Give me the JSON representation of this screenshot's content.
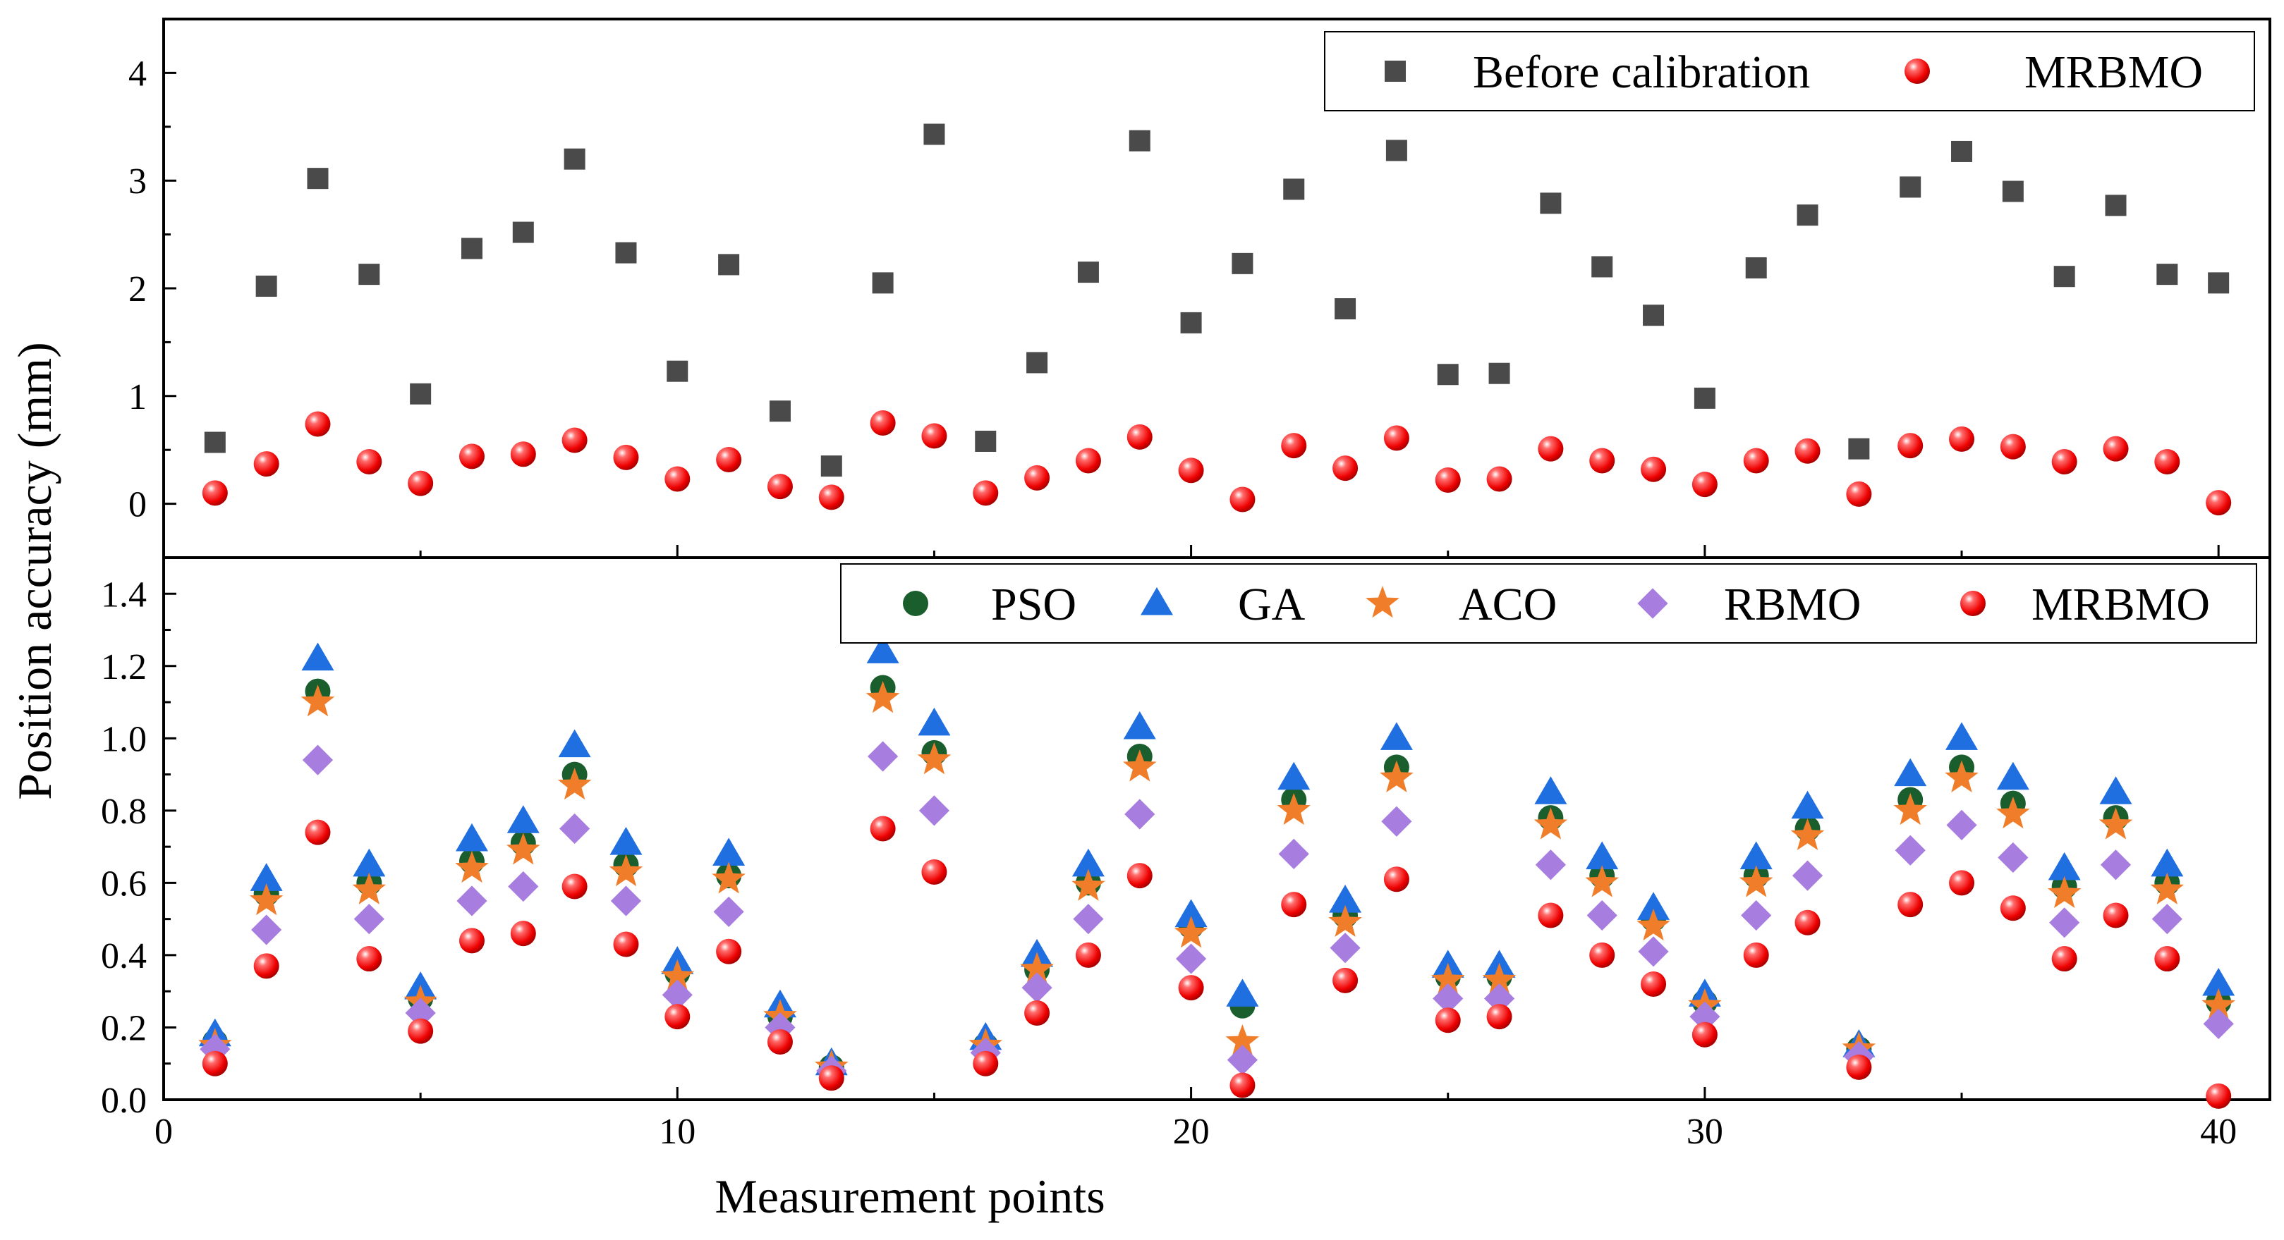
{
  "chart_data": [
    {
      "type": "scatter",
      "panel": "top",
      "title": "",
      "xlabel": "Measurement points",
      "ylabel": "Position accuracy (mm)",
      "xlim": [
        0,
        41
      ],
      "ylim": [
        -0.5,
        4.5
      ],
      "yticks": [
        0,
        1,
        2,
        3,
        4
      ],
      "x": [
        1,
        2,
        3,
        4,
        5,
        6,
        7,
        8,
        9,
        10,
        11,
        12,
        13,
        14,
        15,
        16,
        17,
        18,
        19,
        20,
        21,
        22,
        23,
        24,
        25,
        26,
        27,
        28,
        29,
        30,
        31,
        32,
        33,
        34,
        35,
        36,
        37,
        38,
        39,
        40
      ],
      "series": [
        {
          "name": "Before calibration",
          "marker": "square",
          "color": "#4a4a4a",
          "values": [
            0.57,
            2.02,
            3.02,
            2.13,
            1.02,
            2.37,
            2.52,
            3.2,
            2.33,
            1.23,
            2.22,
            0.86,
            0.35,
            2.05,
            3.43,
            0.58,
            1.31,
            2.15,
            3.37,
            1.68,
            2.23,
            2.92,
            1.81,
            3.28,
            1.2,
            1.21,
            2.79,
            2.2,
            1.75,
            0.98,
            2.19,
            2.68,
            0.51,
            2.94,
            3.27,
            2.9,
            2.11,
            2.77,
            2.13,
            2.05
          ]
        },
        {
          "name": "MRBMO",
          "marker": "circle",
          "color": "#ff1a1a",
          "values": [
            0.1,
            0.37,
            0.74,
            0.39,
            0.19,
            0.44,
            0.46,
            0.59,
            0.43,
            0.23,
            0.41,
            0.16,
            0.06,
            0.75,
            0.63,
            0.1,
            0.24,
            0.4,
            0.62,
            0.31,
            0.04,
            0.54,
            0.33,
            0.61,
            0.22,
            0.23,
            0.51,
            0.4,
            0.32,
            0.18,
            0.4,
            0.49,
            0.09,
            0.54,
            0.6,
            0.53,
            0.39,
            0.51,
            0.39,
            0.01
          ]
        }
      ],
      "legend": {
        "position": "top-right"
      }
    },
    {
      "type": "scatter",
      "panel": "bottom",
      "title": "",
      "xlabel": "Measurement points",
      "ylabel": "Position accuracy (mm)",
      "xlim": [
        0,
        41
      ],
      "ylim": [
        0,
        1.5
      ],
      "xticks": [
        0,
        10,
        20,
        30,
        40
      ],
      "yticks": [
        0.0,
        0.2,
        0.4,
        0.6,
        0.8,
        1.0,
        1.2,
        1.4
      ],
      "ytick_labels": [
        "0.0",
        "0.2",
        "0.4",
        "0.6",
        "0.8",
        "1.0",
        "1.2",
        "1.4"
      ],
      "x": [
        1,
        2,
        3,
        4,
        5,
        6,
        7,
        8,
        9,
        10,
        11,
        12,
        13,
        14,
        15,
        16,
        17,
        18,
        19,
        20,
        21,
        22,
        23,
        24,
        25,
        26,
        27,
        28,
        29,
        30,
        31,
        32,
        33,
        34,
        35,
        36,
        37,
        38,
        39,
        40
      ],
      "series": [
        {
          "name": "PSO",
          "marker": "circle",
          "color": "#1b5e2e",
          "values": [
            0.16,
            0.57,
            1.13,
            0.6,
            0.28,
            0.66,
            0.71,
            0.9,
            0.65,
            0.35,
            0.62,
            0.23,
            0.09,
            1.14,
            0.96,
            0.15,
            0.36,
            0.6,
            0.95,
            0.48,
            0.26,
            0.83,
            0.51,
            0.92,
            0.34,
            0.34,
            0.78,
            0.62,
            0.5,
            0.27,
            0.62,
            0.75,
            0.14,
            0.83,
            0.92,
            0.82,
            0.59,
            0.78,
            0.6,
            0.27
          ]
        },
        {
          "name": "GA",
          "marker": "triangle",
          "color": "#1f6fe0",
          "values": [
            0.18,
            0.61,
            1.22,
            0.65,
            0.31,
            0.72,
            0.77,
            0.98,
            0.71,
            0.38,
            0.68,
            0.26,
            0.1,
            1.24,
            1.04,
            0.17,
            0.4,
            0.65,
            1.03,
            0.51,
            0.29,
            0.89,
            0.55,
            1.0,
            0.37,
            0.37,
            0.85,
            0.67,
            0.53,
            0.29,
            0.67,
            0.81,
            0.15,
            0.9,
            1.0,
            0.89,
            0.64,
            0.85,
            0.65,
            0.32
          ]
        },
        {
          "name": "ACO",
          "marker": "star",
          "color": "#f07d2a",
          "values": [
            0.15,
            0.55,
            1.1,
            0.58,
            0.27,
            0.64,
            0.69,
            0.87,
            0.63,
            0.34,
            0.61,
            0.23,
            0.09,
            1.11,
            0.94,
            0.15,
            0.36,
            0.59,
            0.92,
            0.46,
            0.16,
            0.8,
            0.49,
            0.89,
            0.33,
            0.33,
            0.76,
            0.6,
            0.48,
            0.26,
            0.6,
            0.73,
            0.14,
            0.8,
            0.89,
            0.79,
            0.57,
            0.76,
            0.58,
            0.26
          ]
        },
        {
          "name": "RBMO",
          "marker": "diamond",
          "color": "#a87de0",
          "values": [
            0.14,
            0.47,
            0.94,
            0.5,
            0.24,
            0.55,
            0.59,
            0.75,
            0.55,
            0.29,
            0.52,
            0.2,
            0.08,
            0.95,
            0.8,
            0.13,
            0.31,
            0.5,
            0.79,
            0.39,
            0.11,
            0.68,
            0.42,
            0.77,
            0.28,
            0.28,
            0.65,
            0.51,
            0.41,
            0.23,
            0.51,
            0.62,
            0.12,
            0.69,
            0.76,
            0.67,
            0.49,
            0.65,
            0.5,
            0.21
          ]
        },
        {
          "name": "MRBMO",
          "marker": "circle",
          "color": "#ff1a1a",
          "values": [
            0.1,
            0.37,
            0.74,
            0.39,
            0.19,
            0.44,
            0.46,
            0.59,
            0.43,
            0.23,
            0.41,
            0.16,
            0.06,
            0.75,
            0.63,
            0.1,
            0.24,
            0.4,
            0.62,
            0.31,
            0.04,
            0.54,
            0.33,
            0.61,
            0.22,
            0.23,
            0.51,
            0.4,
            0.32,
            0.18,
            0.4,
            0.49,
            0.09,
            0.54,
            0.6,
            0.53,
            0.39,
            0.51,
            0.39,
            0.01
          ]
        }
      ],
      "legend": {
        "position": "top-right"
      }
    }
  ]
}
